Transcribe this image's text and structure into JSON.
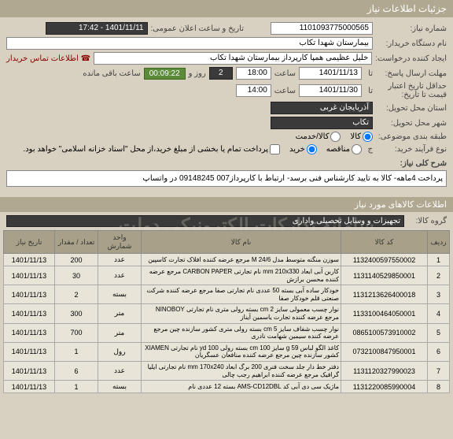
{
  "header": "جزئیات اطلاعات نیاز",
  "fields": {
    "need_number_label": "شماره نیاز:",
    "need_number": "1101093775000565",
    "public_date_label": "تاریخ و ساعت اعلان عمومی:",
    "public_date": "1401/11/11 - 17:42",
    "buyer_label": "نام دستگاه خریدار:",
    "buyer": "بیمارستان شهدا تکاب",
    "creator_label": "ایجاد کننده درخواست:",
    "creator": "خلیل عظیمی همپا کارپرداز بیمارستان شهدا تکاب",
    "contact_link": "اطلاعات تماس خریدار",
    "response_deadline_label": "مهلت ارسال پاسخ:",
    "response_date": "1401/11/13",
    "response_time_label": "ساعت",
    "response_time": "18:00",
    "day_label": "روز و",
    "days": "2",
    "remaining_label": "ساعت باقی مانده",
    "remaining": "00:09:22",
    "ta_label": "تا",
    "validity_label": "حداقل تاریخ اعتبار",
    "validity_label2": "قیمت تا تاریخ:",
    "validity_date": "1401/11/30",
    "validity_time": "14:00",
    "province_label": "استان محل تحویل:",
    "province": "آذربایجان غربی",
    "city_label": "شهر محل تحویل:",
    "city": "تکاب",
    "category_label": "طبقه بندی موضوعی:",
    "goods_radio": "کالا",
    "service_radio": "کالا/خدمت",
    "process_label": "نوع فرآیند خرید:",
    "process_letter": "ج",
    "tender_radio": "مناقصه",
    "purchase_radio": "خرید",
    "process_note": "پرداخت تمام یا بخشی از مبلغ خرید،از محل \"اسناد خزانه اسلامی\" خواهد بود."
  },
  "desc_title_label": "شرح کلی نیاز:",
  "description": "پرداخت 4ماهه- کالا به تایید کارشناس فنی برسد- ارتباط با کارپرداز007 09148245 در واتساپ",
  "items_header": "اطلاعات کالاهای مورد نیاز",
  "group_label": "گروه کالا:",
  "group_value": "تجهیزات و وسایل تحصیلی واداری",
  "watermark1": "سامانه تدارکات الکترونیکی دولت",
  "watermark2": "مرکز تماس ۱۴۵۶–۰۲۱۰۸۰",
  "table": {
    "headers": {
      "row": "ردیف",
      "code": "کد کالا",
      "name": "نام کالا",
      "unit": "واحد شمارش",
      "qty": "تعداد / مقدار",
      "date": "تاریخ نیاز"
    },
    "rows": [
      {
        "n": "1",
        "code": "1132400597550002",
        "name": "سوزن منگنه متوسط مدل M 24/6 مرجع عرضه کننده افلاک تجارت کاسپین",
        "unit": "عدد",
        "qty": "200",
        "date": "1401/11/13"
      },
      {
        "n": "2",
        "code": "1131140529850001",
        "name": "کاربن آبی ابعاد mm 210x330 نام تجارتی CARBON PAPER مرجع عرضه کننده محسن برازش",
        "unit": "عدد",
        "qty": "30",
        "date": "1401/11/13"
      },
      {
        "n": "3",
        "code": "1131213626400018",
        "name": "خودکار ساده آبی بسته 50 عددی نام تجارتی صفا مرجع عرضه کننده شرکت صنعتی قلم خودکار صفا",
        "unit": "بسته",
        "qty": "2",
        "date": "1401/11/13"
      },
      {
        "n": "4",
        "code": "1133100464050001",
        "name": "نوار چسب معمولی سایز cm 2 بسته رولی متری نام تجارتی NINOBOY مرجع عرضه کننده تجارت یاسمین آیناز",
        "unit": "متر",
        "qty": "300",
        "date": "1401/11/13"
      },
      {
        "n": "5",
        "code": "0865100573910002",
        "name": "نوار چسب شفاف سایز cm 5 بسته رولی متری کشور سازنده چین مرجع عرضه کننده سیمین شهامت نادری",
        "unit": "متر",
        "qty": "700",
        "date": "1401/11/13"
      },
      {
        "n": "6",
        "code": "0732100847950001",
        "name": "کاغذ الگو لباس g 59 سایز cm 100 بسته رولی yd 100 نام تجارتی XIAMEN کشور سازنده چین مرجع عرضه کننده منافعان عسگریان",
        "unit": "رول",
        "qty": "1",
        "date": "1401/11/13"
      },
      {
        "n": "7",
        "code": "1131120327990023",
        "name": "دفتر خط دار جلد سخت فنری 200 برگ ابعاد mm 170x240 نام تجارتی ایلیا گرافیک مرجع عرضه کننده ابراهیم رجب چالی",
        "unit": "عدد",
        "qty": "6",
        "date": "1401/11/13"
      },
      {
        "n": "8",
        "code": "1131220085990004",
        "name": "ماژیک سی دی آبی کد AMS-CD12DBL بسته 12 عددی نام",
        "unit": "بسته",
        "qty": "1",
        "date": "1401/11/13"
      }
    ]
  }
}
